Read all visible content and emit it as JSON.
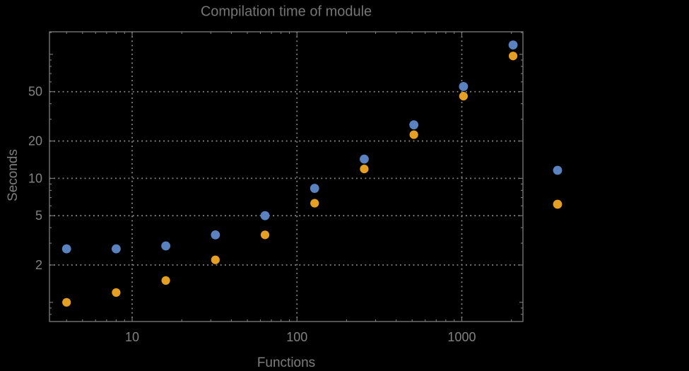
{
  "chart_data": {
    "type": "scatter",
    "title": "Compilation time of module",
    "xlabel": "Functions",
    "ylabel": "Seconds",
    "x_scale": "log",
    "y_scale": "log",
    "xlim": [
      3.15,
      2350
    ],
    "ylim": [
      0.7,
      152
    ],
    "grid": "dotted major gridlines",
    "x": [
      4,
      8,
      16,
      32,
      64,
      128,
      256,
      512,
      1024,
      2048
    ],
    "series": [
      {
        "name": "series-blue",
        "color": "#5b82c0",
        "marker_radius": 6.4,
        "values": [
          2.7,
          2.7,
          2.85,
          3.5,
          5.0,
          8.3,
          14.3,
          27,
          55,
          119
        ]
      },
      {
        "name": "series-orange",
        "color": "#e5a024",
        "marker_radius": 6.1,
        "values": [
          1.0,
          1.2,
          1.5,
          2.2,
          3.5,
          6.3,
          11.9,
          22.5,
          46,
          97
        ]
      }
    ],
    "x_ticks": {
      "major": [
        {
          "v": 10,
          "label": "10"
        },
        {
          "v": 100,
          "label": "100"
        },
        {
          "v": 1000,
          "label": "1000"
        }
      ],
      "unlabeled": [],
      "minor": [
        4,
        5,
        6,
        7,
        8,
        9,
        20,
        30,
        40,
        50,
        60,
        70,
        80,
        90,
        200,
        300,
        400,
        500,
        600,
        700,
        800,
        900,
        2000
      ]
    },
    "y_ticks": {
      "major": [
        {
          "v": 2,
          "label": "2"
        },
        {
          "v": 5,
          "label": "5"
        },
        {
          "v": 10,
          "label": "10"
        },
        {
          "v": 20,
          "label": "20"
        },
        {
          "v": 50,
          "label": "50"
        }
      ],
      "unlabeled": [
        1,
        100
      ],
      "minor": [
        0.8,
        0.9,
        3,
        4,
        6,
        7,
        8,
        9,
        30,
        40,
        60,
        70,
        80,
        90,
        150
      ]
    },
    "gridlines": {
      "x": [
        10,
        100,
        1000
      ],
      "y": [
        2,
        5,
        10,
        20,
        50
      ]
    },
    "legend": {
      "position": "right-outside",
      "entries": [
        {
          "name": "legend-marker-blue",
          "color": "#5b82c0"
        },
        {
          "name": "legend-marker-orange",
          "color": "#e5a024"
        }
      ]
    }
  },
  "colors": {
    "background": "#000000",
    "frame": "#7d7d7d",
    "gridline": "#8a8a8a",
    "tick_label": "#828282",
    "title_text": "#757575",
    "axis_label_text": "#7d7d7d"
  }
}
